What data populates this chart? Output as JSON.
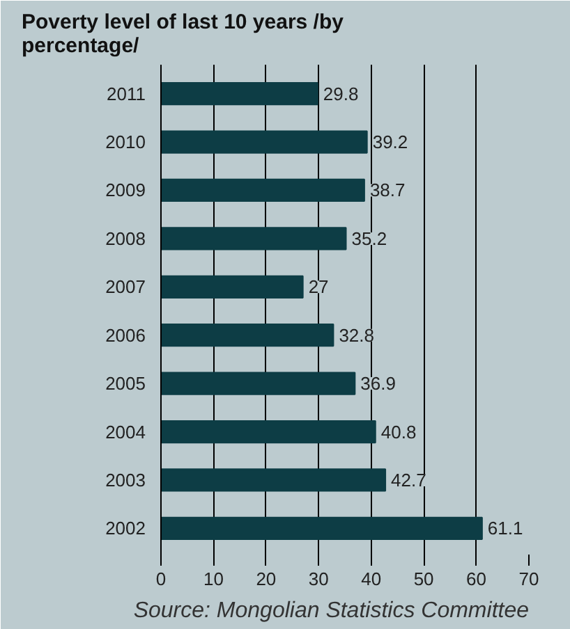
{
  "chart_data": {
    "type": "bar",
    "orientation": "horizontal",
    "title": "Poverty level of last 10 years /by percentage/",
    "categories": [
      "2011",
      "2010",
      "2009",
      "2008",
      "2007",
      "2006",
      "2005",
      "2004",
      "2003",
      "2002"
    ],
    "values": [
      29.8,
      39.2,
      38.7,
      35.2,
      27,
      32.8,
      36.9,
      40.8,
      42.7,
      61.1
    ],
    "color": "#0d3d45",
    "xlim": [
      0,
      70
    ],
    "xticks": [
      0,
      10,
      20,
      30,
      40,
      50,
      60,
      70
    ],
    "grid": "x",
    "data_labels": true,
    "annotations": [
      "Source: Mongolian Statistics Committee"
    ]
  }
}
